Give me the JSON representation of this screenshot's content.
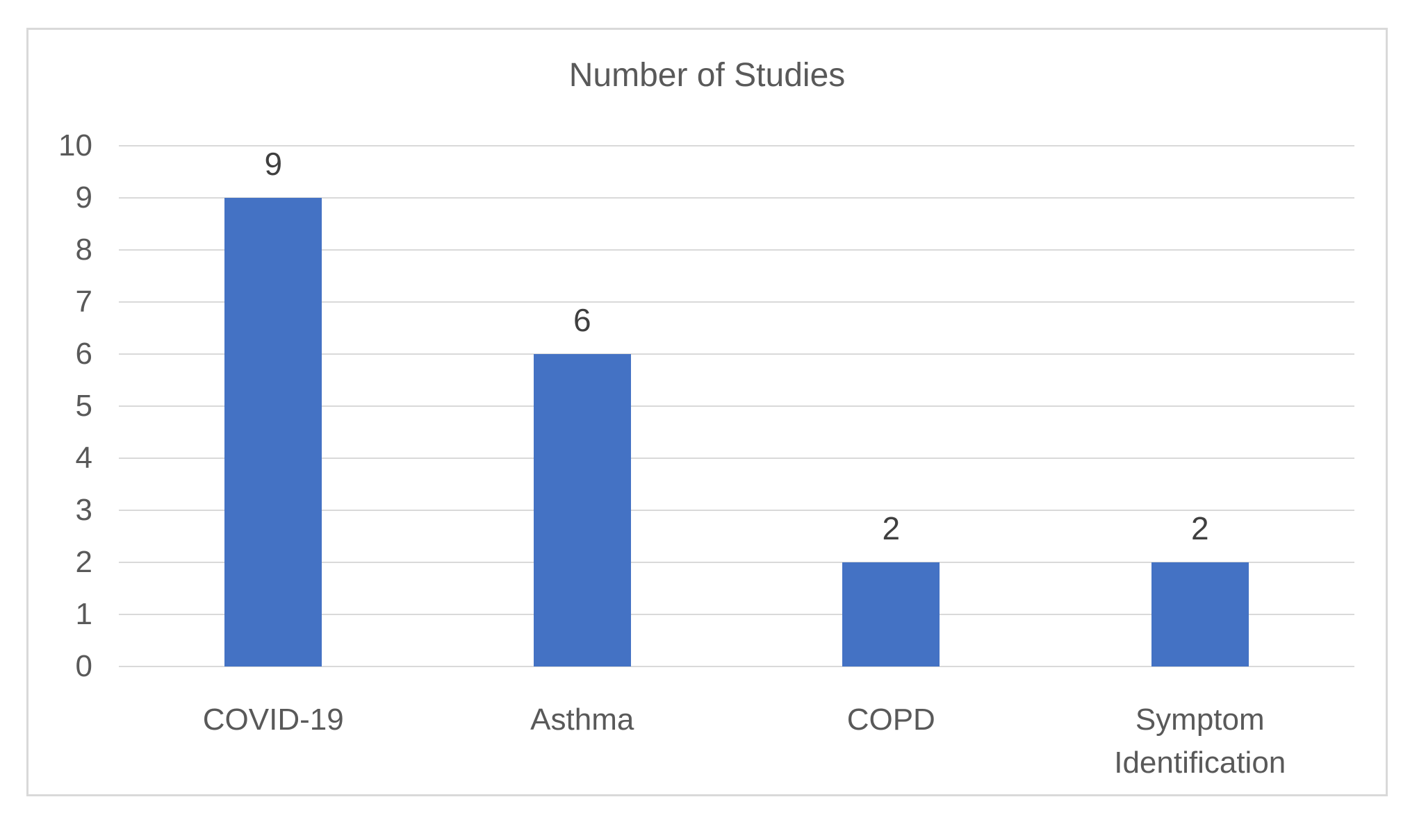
{
  "chart_data": {
    "type": "bar",
    "title": "Number of Studies",
    "categories": [
      "COVID-19",
      "Asthma",
      "COPD",
      "Symptom Identification"
    ],
    "values": [
      9,
      6,
      2,
      2
    ],
    "data_labels": [
      "9",
      "6",
      "2",
      "2"
    ],
    "xlabel": "",
    "ylabel": "",
    "ylim": [
      0,
      10
    ],
    "yticks": [
      0,
      1,
      2,
      3,
      4,
      5,
      6,
      7,
      8,
      9,
      10
    ],
    "grid": true,
    "legend": false,
    "show_data_labels": true,
    "bar_color": "#4472C4"
  },
  "colors": {
    "bar": "#4472C4",
    "gridline": "#D9D9D9",
    "card_border": "#D9D9D9",
    "axis_text": "#595959",
    "data_label_text": "#3F3F3F",
    "title_text": "#595959"
  }
}
